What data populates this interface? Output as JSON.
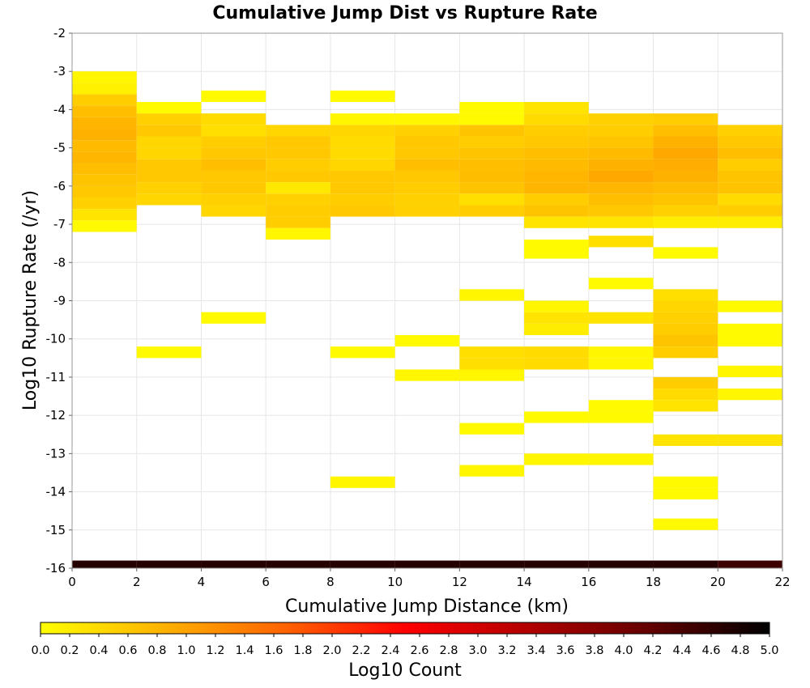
{
  "chart_data": {
    "type": "heatmap",
    "title": "Cumulative Jump Dist vs Rupture Rate",
    "xlabel": "Cumulative Jump Distance (km)",
    "ylabel": "Log10 Rupture Rate (/yr)",
    "xlim": [
      0,
      22
    ],
    "ylim": [
      -16,
      -2
    ],
    "x_ticks": [
      0,
      2,
      4,
      6,
      8,
      10,
      12,
      14,
      16,
      18,
      20,
      22
    ],
    "x_tick_labels": [
      "0",
      "2",
      "4",
      "6",
      "8",
      "10",
      "12",
      "14",
      "16",
      "18",
      "20",
      "22"
    ],
    "y_ticks": [
      -16,
      -15,
      -14,
      -13,
      -12,
      -11,
      -10,
      -9,
      -8,
      -7,
      -6,
      -5,
      -4,
      -3,
      -2
    ],
    "y_tick_labels": [
      "-16",
      "-15",
      "-14",
      "-13",
      "-12",
      "-11",
      "-10",
      "-9",
      "-8",
      "-7",
      "-6",
      "-5",
      "-4",
      "-3",
      "-2"
    ],
    "grid": true,
    "bin_width_x": 2,
    "bin_height_y": 0.3,
    "colorbar": {
      "label": "Log10 Count",
      "range": [
        0,
        5
      ],
      "position": "bottom",
      "tick_labels": [
        "0.0",
        "0.2",
        "0.4",
        "0.6",
        "0.8",
        "1.0",
        "1.2",
        "1.4",
        "1.6",
        "1.8",
        "2.0",
        "2.2",
        "2.4",
        "2.6",
        "2.8",
        "3.0",
        "3.2",
        "3.4",
        "3.6",
        "3.8",
        "4.0",
        "4.2",
        "4.4",
        "4.6",
        "4.8",
        "5.0"
      ],
      "colors": [
        "#ffff00",
        "#ffb300",
        "#ff6400",
        "#ff0000",
        "#b40000",
        "#640000",
        "#000000"
      ]
    },
    "cells": [
      [
        0,
        -3.15,
        0.1
      ],
      [
        0,
        -3.45,
        0.15
      ],
      [
        0,
        -3.75,
        0.55
      ],
      [
        0,
        -4.05,
        0.7
      ],
      [
        0,
        -4.35,
        0.82
      ],
      [
        0,
        -4.65,
        0.85
      ],
      [
        0,
        -4.95,
        0.75
      ],
      [
        0,
        -5.25,
        0.8
      ],
      [
        0,
        -5.55,
        0.7
      ],
      [
        0,
        -5.85,
        0.65
      ],
      [
        0,
        -6.15,
        0.6
      ],
      [
        0,
        -6.45,
        0.5
      ],
      [
        0,
        -6.75,
        0.3
      ],
      [
        0,
        -7.05,
        0.05
      ],
      [
        0,
        -15.95,
        4.7
      ],
      [
        2,
        -3.95,
        0.05
      ],
      [
        2,
        -4.25,
        0.5
      ],
      [
        2,
        -4.55,
        0.6
      ],
      [
        2,
        -4.85,
        0.45
      ],
      [
        2,
        -5.15,
        0.45
      ],
      [
        2,
        -5.45,
        0.6
      ],
      [
        2,
        -5.75,
        0.6
      ],
      [
        2,
        -6.05,
        0.5
      ],
      [
        2,
        -6.35,
        0.45
      ],
      [
        2,
        -10.35,
        0.05
      ],
      [
        2,
        -15.95,
        4.7
      ],
      [
        4,
        -3.65,
        0.05
      ],
      [
        4,
        -4.25,
        0.4
      ],
      [
        4,
        -4.55,
        0.35
      ],
      [
        4,
        -4.85,
        0.55
      ],
      [
        4,
        -5.15,
        0.6
      ],
      [
        4,
        -5.45,
        0.7
      ],
      [
        4,
        -5.75,
        0.6
      ],
      [
        4,
        -6.05,
        0.6
      ],
      [
        4,
        -6.35,
        0.5
      ],
      [
        4,
        -6.65,
        0.45
      ],
      [
        4,
        -9.45,
        0.05
      ],
      [
        4,
        -15.95,
        4.7
      ],
      [
        6,
        -4.55,
        0.45
      ],
      [
        6,
        -4.85,
        0.6
      ],
      [
        6,
        -5.15,
        0.6
      ],
      [
        6,
        -5.45,
        0.55
      ],
      [
        6,
        -5.75,
        0.6
      ],
      [
        6,
        -6.05,
        0.25
      ],
      [
        6,
        -6.35,
        0.5
      ],
      [
        6,
        -6.65,
        0.55
      ],
      [
        6,
        -6.95,
        0.55
      ],
      [
        6,
        -7.25,
        0.1
      ],
      [
        6,
        -15.95,
        4.7
      ],
      [
        8,
        -3.65,
        0.05
      ],
      [
        8,
        -4.25,
        0.1
      ],
      [
        8,
        -4.55,
        0.45
      ],
      [
        8,
        -4.85,
        0.4
      ],
      [
        8,
        -5.15,
        0.4
      ],
      [
        8,
        -5.45,
        0.45
      ],
      [
        8,
        -5.75,
        0.6
      ],
      [
        8,
        -6.05,
        0.6
      ],
      [
        8,
        -6.35,
        0.55
      ],
      [
        8,
        -6.65,
        0.6
      ],
      [
        8,
        -10.35,
        0.05
      ],
      [
        8,
        -13.75,
        0.1
      ],
      [
        8,
        -15.95,
        4.7
      ],
      [
        10,
        -4.25,
        0.1
      ],
      [
        10,
        -4.55,
        0.5
      ],
      [
        10,
        -4.85,
        0.6
      ],
      [
        10,
        -5.15,
        0.6
      ],
      [
        10,
        -5.45,
        0.7
      ],
      [
        10,
        -5.75,
        0.6
      ],
      [
        10,
        -6.05,
        0.55
      ],
      [
        10,
        -6.35,
        0.5
      ],
      [
        10,
        -6.65,
        0.5
      ],
      [
        10,
        -10.05,
        0.05
      ],
      [
        10,
        -10.95,
        0.1
      ],
      [
        10,
        -15.95,
        4.7
      ],
      [
        12,
        -3.95,
        0.05
      ],
      [
        12,
        -4.25,
        0.05
      ],
      [
        12,
        -4.55,
        0.65
      ],
      [
        12,
        -4.85,
        0.55
      ],
      [
        12,
        -5.15,
        0.65
      ],
      [
        12,
        -5.45,
        0.7
      ],
      [
        12,
        -5.75,
        0.72
      ],
      [
        12,
        -6.05,
        0.65
      ],
      [
        12,
        -6.35,
        0.35
      ],
      [
        12,
        -6.65,
        0.55
      ],
      [
        12,
        -8.85,
        0.1
      ],
      [
        12,
        -10.35,
        0.35
      ],
      [
        12,
        -10.65,
        0.35
      ],
      [
        12,
        -10.95,
        0.1
      ],
      [
        12,
        -12.35,
        0.05
      ],
      [
        12,
        -13.45,
        0.1
      ],
      [
        12,
        -15.95,
        4.7
      ],
      [
        14,
        -3.95,
        0.3
      ],
      [
        14,
        -4.25,
        0.4
      ],
      [
        14,
        -4.55,
        0.55
      ],
      [
        14,
        -4.85,
        0.6
      ],
      [
        14,
        -5.15,
        0.7
      ],
      [
        14,
        -5.45,
        0.75
      ],
      [
        14,
        -5.75,
        0.8
      ],
      [
        14,
        -6.05,
        0.8
      ],
      [
        14,
        -6.35,
        0.55
      ],
      [
        14,
        -6.65,
        0.65
      ],
      [
        14,
        -6.95,
        0.3
      ],
      [
        14,
        -7.55,
        0.05
      ],
      [
        14,
        -7.75,
        0.05
      ],
      [
        14,
        -9.15,
        0.1
      ],
      [
        14,
        -9.45,
        0.3
      ],
      [
        14,
        -9.75,
        0.2
      ],
      [
        14,
        -10.35,
        0.4
      ],
      [
        14,
        -10.65,
        0.4
      ],
      [
        14,
        -12.05,
        0.05
      ],
      [
        14,
        -13.15,
        0.1
      ],
      [
        14,
        -15.95,
        4.7
      ],
      [
        16,
        -4.25,
        0.5
      ],
      [
        16,
        -4.55,
        0.55
      ],
      [
        16,
        -4.85,
        0.65
      ],
      [
        16,
        -5.15,
        0.75
      ],
      [
        16,
        -5.45,
        0.85
      ],
      [
        16,
        -5.75,
        0.95
      ],
      [
        16,
        -6.05,
        0.8
      ],
      [
        16,
        -6.35,
        0.7
      ],
      [
        16,
        -6.65,
        0.6
      ],
      [
        16,
        -6.95,
        0.3
      ],
      [
        16,
        -7.45,
        0.35
      ],
      [
        16,
        -8.55,
        0.05
      ],
      [
        16,
        -9.45,
        0.3
      ],
      [
        16,
        -10.35,
        0.1
      ],
      [
        16,
        -10.65,
        0.1
      ],
      [
        16,
        -11.75,
        0.05
      ],
      [
        16,
        -12.05,
        0.05
      ],
      [
        16,
        -13.15,
        0.1
      ],
      [
        16,
        -15.95,
        4.7
      ],
      [
        18,
        -4.25,
        0.55
      ],
      [
        18,
        -4.55,
        0.7
      ],
      [
        18,
        -4.85,
        0.85
      ],
      [
        18,
        -5.15,
        0.95
      ],
      [
        18,
        -5.45,
        0.9
      ],
      [
        18,
        -5.75,
        0.85
      ],
      [
        18,
        -6.05,
        0.75
      ],
      [
        18,
        -6.35,
        0.65
      ],
      [
        18,
        -6.65,
        0.5
      ],
      [
        18,
        -6.95,
        0.2
      ],
      [
        18,
        -7.75,
        0.05
      ],
      [
        18,
        -8.85,
        0.35
      ],
      [
        18,
        -9.15,
        0.45
      ],
      [
        18,
        -9.45,
        0.5
      ],
      [
        18,
        -9.75,
        0.55
      ],
      [
        18,
        -10.05,
        0.65
      ],
      [
        18,
        -10.35,
        0.55
      ],
      [
        18,
        -11.15,
        0.55
      ],
      [
        18,
        -11.45,
        0.4
      ],
      [
        18,
        -11.75,
        0.3
      ],
      [
        18,
        -12.65,
        0.3
      ],
      [
        18,
        -13.75,
        0.05
      ],
      [
        18,
        -14.05,
        0.05
      ],
      [
        18,
        -14.85,
        0.05
      ],
      [
        18,
        -15.95,
        4.7
      ],
      [
        20,
        -4.55,
        0.5
      ],
      [
        20,
        -4.85,
        0.6
      ],
      [
        20,
        -5.15,
        0.7
      ],
      [
        20,
        -5.45,
        0.55
      ],
      [
        20,
        -5.75,
        0.65
      ],
      [
        20,
        -6.05,
        0.65
      ],
      [
        20,
        -6.35,
        0.4
      ],
      [
        20,
        -6.65,
        0.55
      ],
      [
        20,
        -6.95,
        0.2
      ],
      [
        20,
        -9.15,
        0.05
      ],
      [
        20,
        -9.75,
        0.05
      ],
      [
        20,
        -10.05,
        0.05
      ],
      [
        20,
        -10.85,
        0.1
      ],
      [
        20,
        -11.45,
        0.1
      ],
      [
        20,
        -12.65,
        0.3
      ],
      [
        20,
        -15.95,
        4.5
      ]
    ]
  }
}
